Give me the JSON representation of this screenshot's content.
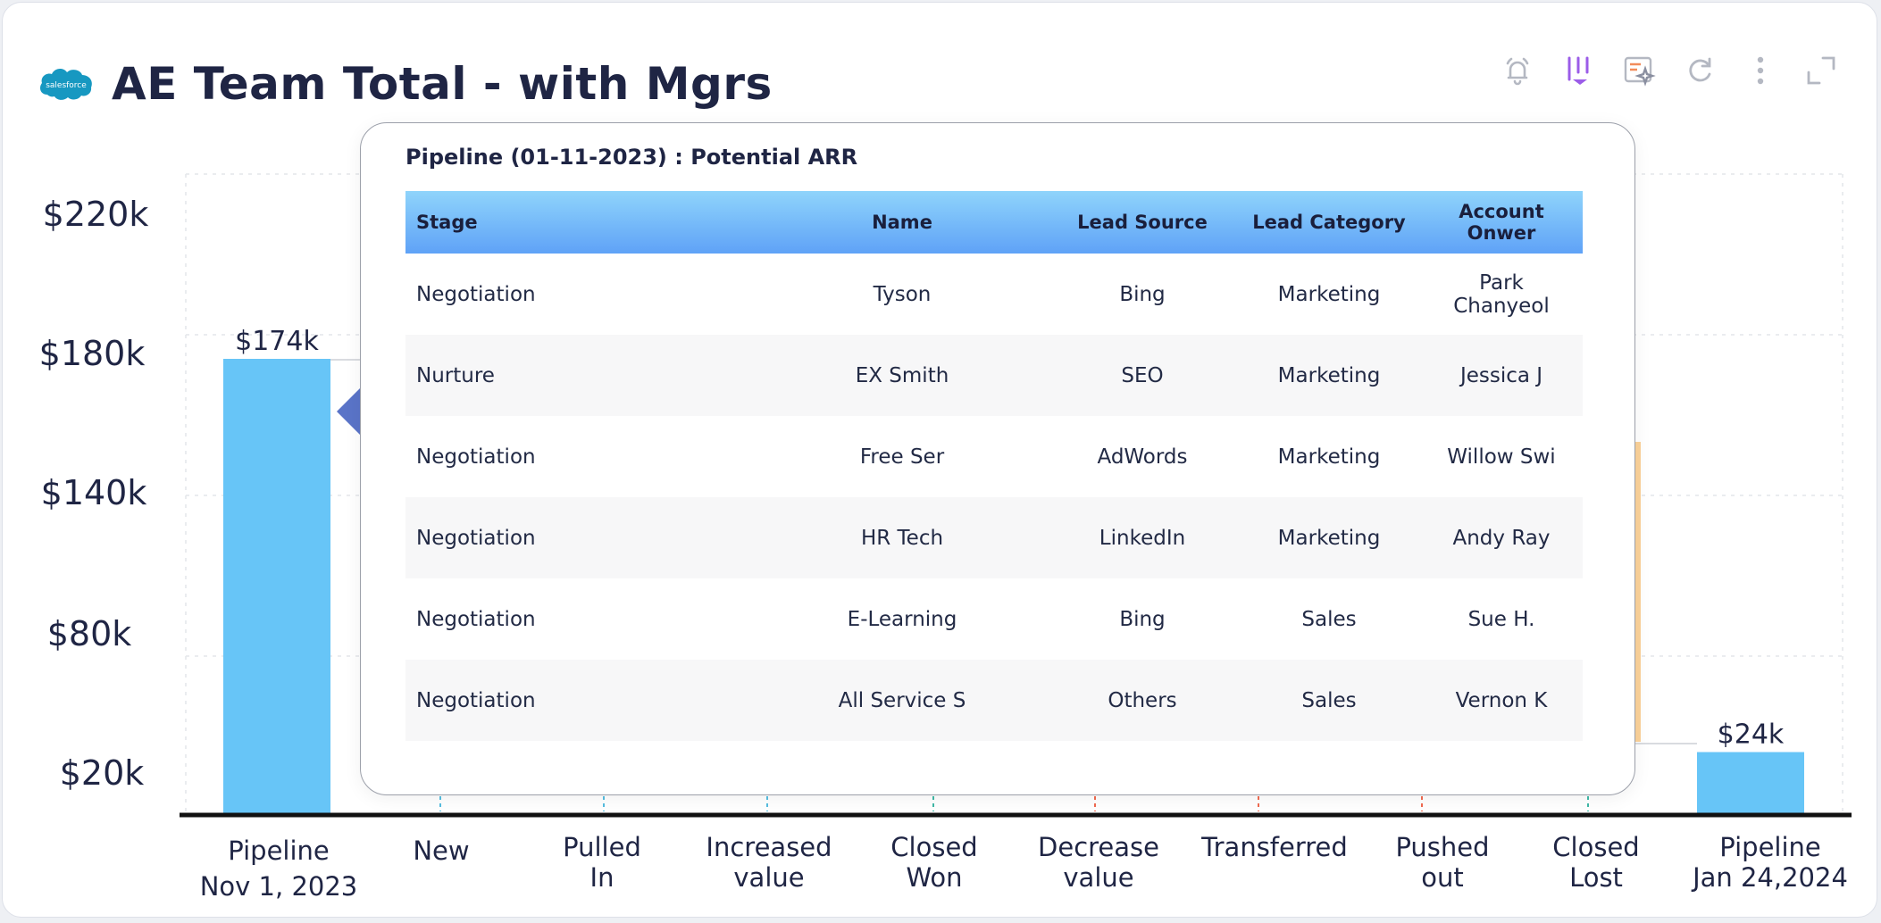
{
  "header": {
    "title": "AE Team Total - with Mgrs",
    "logo_text": "salesforce"
  },
  "toolbar": {
    "icons": [
      "bell-icon",
      "drilldown-icon",
      "ai-insight-icon",
      "refresh-icon",
      "more-vertical-icon",
      "expand-icon"
    ]
  },
  "chart_data": {
    "type": "waterfall",
    "title": "",
    "y_ticks": [
      "$220k",
      "$180k",
      "$140k",
      "$80k",
      "$20k"
    ],
    "categories": [
      [
        "Pipeline",
        "Nov 1, 2023"
      ],
      [
        "New"
      ],
      [
        "Pulled",
        "In"
      ],
      [
        "Increased",
        "value"
      ],
      [
        "Closed",
        "Won"
      ],
      [
        "Decrease",
        "value"
      ],
      [
        "Transferred"
      ],
      [
        "Pushed",
        "out"
      ],
      [
        "Closed",
        "Lost"
      ],
      [
        "Pipeline",
        "Jan 24,2024"
      ]
    ],
    "bars": [
      {
        "category": "Pipeline Nov 1, 2023",
        "value": 174,
        "label": "$174k"
      },
      {
        "category": "Pipeline Jan 24,2024",
        "value": 24,
        "label": "$24k"
      }
    ],
    "colors": {
      "total": "#67c5f7",
      "increase": "#55bde0",
      "decrease": "#f06a50",
      "partial": "#fbd29a",
      "axis": "#111111"
    }
  },
  "popup": {
    "title": "Pipeline (01-11-2023) : Potential ARR",
    "columns": [
      "Stage",
      "Name",
      "Lead Source",
      "Lead Category",
      "Account Onwer"
    ],
    "rows": [
      [
        "Negotiation",
        "Tyson",
        "Bing",
        "Marketing",
        "Park Chanyeol"
      ],
      [
        "Nurture",
        "EX Smith",
        "SEO",
        "Marketing",
        "Jessica J"
      ],
      [
        "Negotiation",
        "Free Ser",
        "AdWords",
        "Marketing",
        "Willow Swi"
      ],
      [
        "Negotiation",
        "HR Tech",
        "LinkedIn",
        "Marketing",
        "Andy Ray"
      ],
      [
        "Negotiation",
        "E-Learning",
        "Bing",
        "Sales",
        "Sue H."
      ],
      [
        "Negotiation",
        "All Service S",
        "Others",
        "Sales",
        "Vernon K"
      ]
    ]
  }
}
